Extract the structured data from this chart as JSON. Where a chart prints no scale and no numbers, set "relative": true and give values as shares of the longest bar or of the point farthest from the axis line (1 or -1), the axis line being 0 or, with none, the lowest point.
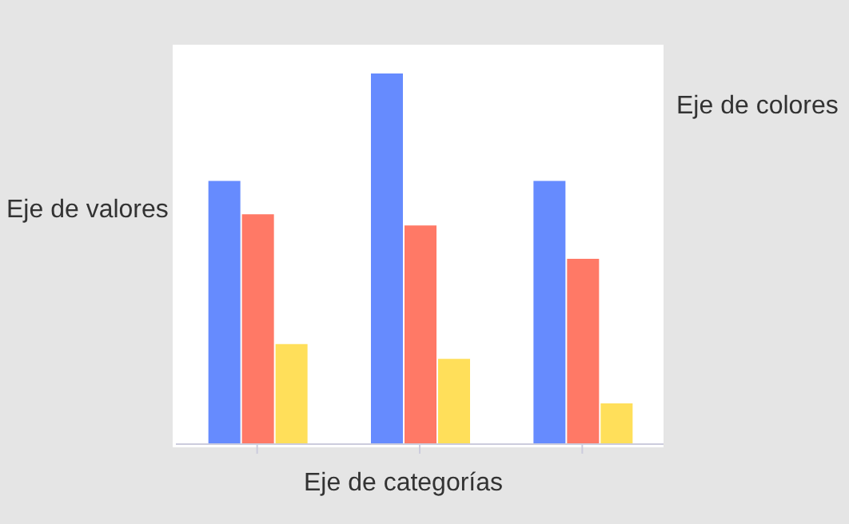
{
  "chart_data": {
    "type": "bar",
    "relative": true,
    "xlabel": "Eje de categorías",
    "ylabel": "Eje de valores",
    "legend_title": "Eje de colores",
    "categories": [
      null,
      null,
      null
    ],
    "series": [
      {
        "color": "#668bfe",
        "values": [
          0.71,
          1,
          0.71
        ]
      },
      {
        "color": "#ff7966",
        "values": [
          0.62,
          0.59,
          0.5
        ]
      },
      {
        "color": "#ffdf5a",
        "values": [
          0.27,
          0.23,
          0.11
        ]
      }
    ]
  }
}
